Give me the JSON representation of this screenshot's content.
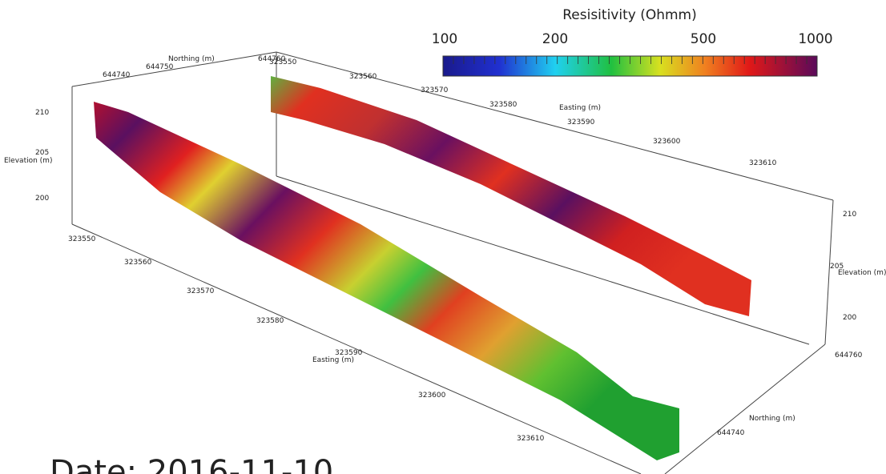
{
  "colorbar": {
    "title": "Resisitivity (Ohmm)",
    "ticks": [
      "100",
      "200",
      "500",
      "1000"
    ]
  },
  "north_top": [
    "Northing (m)",
    "644740",
    "644750",
    "644760"
  ],
  "top_easting": [
    "323550",
    "323560",
    "323570",
    "323580",
    "Easting (m)",
    "323590",
    "323600",
    "323610"
  ],
  "left_elevation": [
    "210",
    "205",
    "Elevation (m)",
    "200"
  ],
  "bottom_easting": [
    "323550",
    "323560",
    "323570",
    "323580",
    "323590",
    "Easting (m)",
    "323600",
    "323610"
  ],
  "right_elevation": [
    "210",
    "205",
    "Elevation (m)",
    "200"
  ],
  "right_northing": [
    "644760",
    "Northing (m)",
    "644740"
  ],
  "date": "Date: 2016-11-10"
}
